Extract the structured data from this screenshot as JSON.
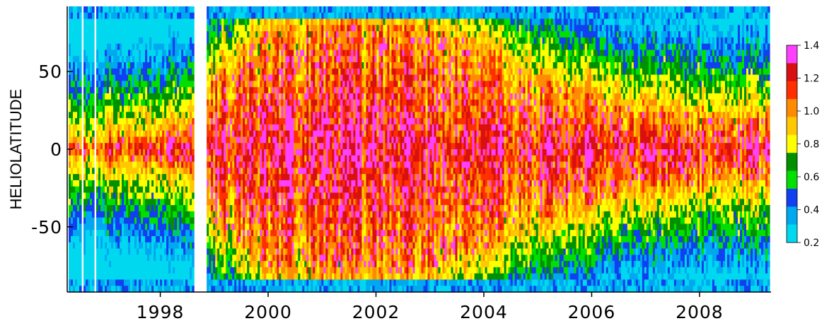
{
  "chart_data": {
    "type": "heatmap",
    "title": "",
    "xlabel": "",
    "ylabel": "HELIOLATITUDE",
    "xlim": [
      1996.3,
      2009.3
    ],
    "ylim": [
      -92,
      92
    ],
    "x_ticks": [
      1998,
      2000,
      2002,
      2004,
      2006,
      2008
    ],
    "y_ticks": [
      50,
      0,
      -50
    ],
    "data_gaps": [
      [
        1996.52,
        1996.56
      ],
      [
        1996.77,
        1996.8
      ],
      [
        1998.62,
        1998.86
      ]
    ],
    "colorbar": {
      "ticks": [
        1.4,
        1.2,
        1.0,
        0.8,
        0.6,
        0.4,
        0.2
      ],
      "range": [
        0.2,
        1.4
      ],
      "colors": [
        "#00d8f0",
        "#00a8f0",
        "#1040f0",
        "#00e000",
        "#009000",
        "#ffff00",
        "#ffc800",
        "#ff8c00",
        "#ff3000",
        "#d81010",
        "#ff40ff"
      ]
    },
    "band_profile": {
      "description_note": "",
      "x": [
        1996.4,
        1997.0,
        1997.5,
        1998.0,
        1998.5,
        1999.0,
        1999.5,
        2000.0,
        2001.0,
        2002.0,
        2003.0,
        2004.0,
        2005.0,
        2006.0,
        2007.0,
        2008.0,
        2009.0,
        2009.3
      ],
      "core_halfwidth_deg": [
        5,
        6,
        8,
        10,
        12,
        45,
        60,
        75,
        80,
        80,
        78,
        65,
        45,
        35,
        25,
        22,
        20,
        20
      ]
    }
  }
}
